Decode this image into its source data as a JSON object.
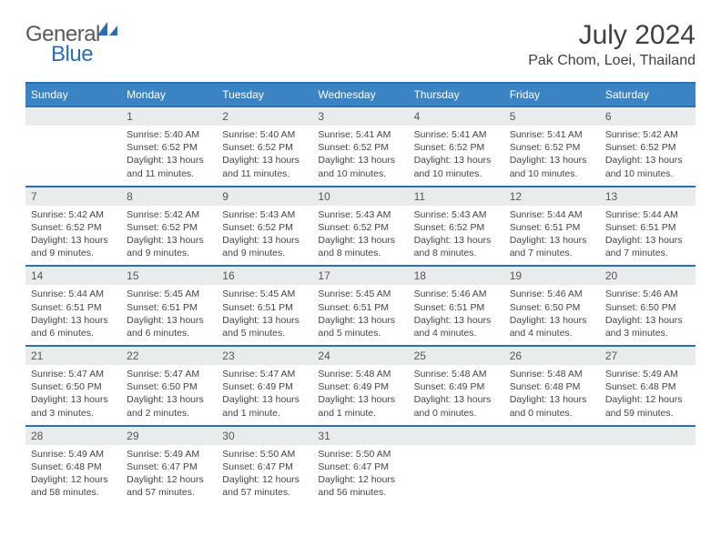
{
  "brand": {
    "part1": "General",
    "part2": "Blue"
  },
  "title": "July 2024",
  "location": "Pak Chom, Loei, Thailand",
  "colors": {
    "header_bg": "#3b84c4",
    "border": "#2a6fb5",
    "daynum_bg": "#e9eced",
    "text": "#444444",
    "title": "#404040"
  },
  "weekdays": [
    "Sunday",
    "Monday",
    "Tuesday",
    "Wednesday",
    "Thursday",
    "Friday",
    "Saturday"
  ],
  "weeks": [
    {
      "nums": [
        "",
        "1",
        "2",
        "3",
        "4",
        "5",
        "6"
      ],
      "cells": [
        null,
        {
          "sunrise": "5:40 AM",
          "sunset": "6:52 PM",
          "daylight": "13 hours and 11 minutes."
        },
        {
          "sunrise": "5:40 AM",
          "sunset": "6:52 PM",
          "daylight": "13 hours and 11 minutes."
        },
        {
          "sunrise": "5:41 AM",
          "sunset": "6:52 PM",
          "daylight": "13 hours and 10 minutes."
        },
        {
          "sunrise": "5:41 AM",
          "sunset": "6:52 PM",
          "daylight": "13 hours and 10 minutes."
        },
        {
          "sunrise": "5:41 AM",
          "sunset": "6:52 PM",
          "daylight": "13 hours and 10 minutes."
        },
        {
          "sunrise": "5:42 AM",
          "sunset": "6:52 PM",
          "daylight": "13 hours and 10 minutes."
        }
      ]
    },
    {
      "nums": [
        "7",
        "8",
        "9",
        "10",
        "11",
        "12",
        "13"
      ],
      "cells": [
        {
          "sunrise": "5:42 AM",
          "sunset": "6:52 PM",
          "daylight": "13 hours and 9 minutes."
        },
        {
          "sunrise": "5:42 AM",
          "sunset": "6:52 PM",
          "daylight": "13 hours and 9 minutes."
        },
        {
          "sunrise": "5:43 AM",
          "sunset": "6:52 PM",
          "daylight": "13 hours and 9 minutes."
        },
        {
          "sunrise": "5:43 AM",
          "sunset": "6:52 PM",
          "daylight": "13 hours and 8 minutes."
        },
        {
          "sunrise": "5:43 AM",
          "sunset": "6:52 PM",
          "daylight": "13 hours and 8 minutes."
        },
        {
          "sunrise": "5:44 AM",
          "sunset": "6:51 PM",
          "daylight": "13 hours and 7 minutes."
        },
        {
          "sunrise": "5:44 AM",
          "sunset": "6:51 PM",
          "daylight": "13 hours and 7 minutes."
        }
      ]
    },
    {
      "nums": [
        "14",
        "15",
        "16",
        "17",
        "18",
        "19",
        "20"
      ],
      "cells": [
        {
          "sunrise": "5:44 AM",
          "sunset": "6:51 PM",
          "daylight": "13 hours and 6 minutes."
        },
        {
          "sunrise": "5:45 AM",
          "sunset": "6:51 PM",
          "daylight": "13 hours and 6 minutes."
        },
        {
          "sunrise": "5:45 AM",
          "sunset": "6:51 PM",
          "daylight": "13 hours and 5 minutes."
        },
        {
          "sunrise": "5:45 AM",
          "sunset": "6:51 PM",
          "daylight": "13 hours and 5 minutes."
        },
        {
          "sunrise": "5:46 AM",
          "sunset": "6:51 PM",
          "daylight": "13 hours and 4 minutes."
        },
        {
          "sunrise": "5:46 AM",
          "sunset": "6:50 PM",
          "daylight": "13 hours and 4 minutes."
        },
        {
          "sunrise": "5:46 AM",
          "sunset": "6:50 PM",
          "daylight": "13 hours and 3 minutes."
        }
      ]
    },
    {
      "nums": [
        "21",
        "22",
        "23",
        "24",
        "25",
        "26",
        "27"
      ],
      "cells": [
        {
          "sunrise": "5:47 AM",
          "sunset": "6:50 PM",
          "daylight": "13 hours and 3 minutes."
        },
        {
          "sunrise": "5:47 AM",
          "sunset": "6:50 PM",
          "daylight": "13 hours and 2 minutes."
        },
        {
          "sunrise": "5:47 AM",
          "sunset": "6:49 PM",
          "daylight": "13 hours and 1 minute."
        },
        {
          "sunrise": "5:48 AM",
          "sunset": "6:49 PM",
          "daylight": "13 hours and 1 minute."
        },
        {
          "sunrise": "5:48 AM",
          "sunset": "6:49 PM",
          "daylight": "13 hours and 0 minutes."
        },
        {
          "sunrise": "5:48 AM",
          "sunset": "6:48 PM",
          "daylight": "13 hours and 0 minutes."
        },
        {
          "sunrise": "5:49 AM",
          "sunset": "6:48 PM",
          "daylight": "12 hours and 59 minutes."
        }
      ]
    },
    {
      "nums": [
        "28",
        "29",
        "30",
        "31",
        "",
        "",
        ""
      ],
      "cells": [
        {
          "sunrise": "5:49 AM",
          "sunset": "6:48 PM",
          "daylight": "12 hours and 58 minutes."
        },
        {
          "sunrise": "5:49 AM",
          "sunset": "6:47 PM",
          "daylight": "12 hours and 57 minutes."
        },
        {
          "sunrise": "5:50 AM",
          "sunset": "6:47 PM",
          "daylight": "12 hours and 57 minutes."
        },
        {
          "sunrise": "5:50 AM",
          "sunset": "6:47 PM",
          "daylight": "12 hours and 56 minutes."
        },
        null,
        null,
        null
      ]
    }
  ],
  "labels": {
    "sunrise": "Sunrise: ",
    "sunset": "Sunset: ",
    "daylight": "Daylight: "
  }
}
